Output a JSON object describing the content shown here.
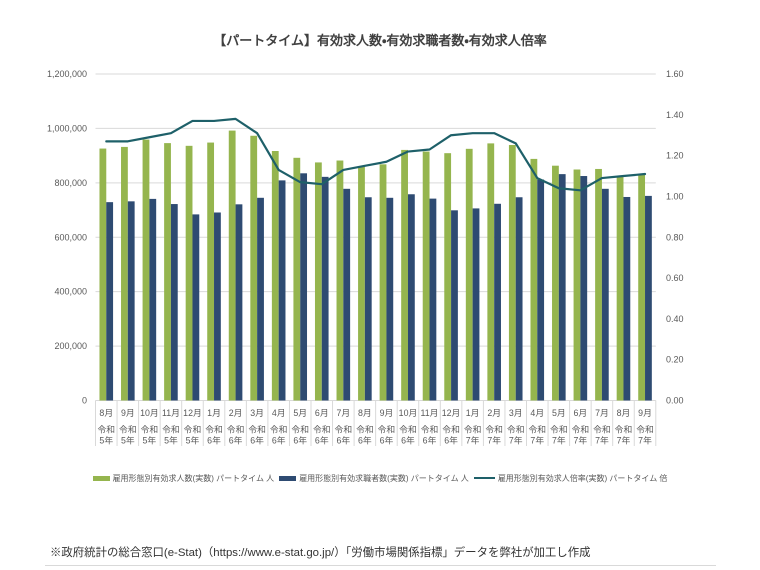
{
  "chart_data": {
    "type": "combo_bar_line",
    "title": "【パートタイム】有効求人数・有効求職者数・有効求人倍率",
    "categories": [
      {
        "month": "8月",
        "era": "令和",
        "year": "5年"
      },
      {
        "month": "9月",
        "era": "令和",
        "year": "5年"
      },
      {
        "month": "10月",
        "era": "令和",
        "year": "5年"
      },
      {
        "month": "11月",
        "era": "令和",
        "year": "5年"
      },
      {
        "month": "12月",
        "era": "令和",
        "year": "5年"
      },
      {
        "month": "1月",
        "era": "令和",
        "year": "6年"
      },
      {
        "month": "2月",
        "era": "令和",
        "year": "6年"
      },
      {
        "month": "3月",
        "era": "令和",
        "year": "6年"
      },
      {
        "month": "4月",
        "era": "令和",
        "year": "6年"
      },
      {
        "month": "5月",
        "era": "令和",
        "year": "6年"
      },
      {
        "month": "6月",
        "era": "令和",
        "year": "6年"
      },
      {
        "month": "7月",
        "era": "令和",
        "year": "6年"
      },
      {
        "month": "8月",
        "era": "令和",
        "year": "6年"
      },
      {
        "month": "9月",
        "era": "令和",
        "year": "6年"
      },
      {
        "month": "10月",
        "era": "令和",
        "year": "6年"
      },
      {
        "month": "11月",
        "era": "令和",
        "year": "6年"
      },
      {
        "month": "12月",
        "era": "令和",
        "year": "6年"
      },
      {
        "month": "1月",
        "era": "令和",
        "year": "7年"
      },
      {
        "month": "2月",
        "era": "令和",
        "year": "7年"
      },
      {
        "month": "3月",
        "era": "令和",
        "year": "7年"
      },
      {
        "month": "4月",
        "era": "令和",
        "year": "7年"
      },
      {
        "month": "5月",
        "era": "令和",
        "year": "7年"
      },
      {
        "month": "6月",
        "era": "令和",
        "year": "7年"
      },
      {
        "month": "7月",
        "era": "令和",
        "year": "7年"
      },
      {
        "month": "8月",
        "era": "令和",
        "year": "7年"
      },
      {
        "month": "9月",
        "era": "令和",
        "year": "7年"
      }
    ],
    "series": [
      {
        "name": "雇用形態別有効求人数(実数) パートタイム 人",
        "type": "bar",
        "axis": "left",
        "color": "#95B54E",
        "values": [
          926000,
          932000,
          959000,
          946000,
          936000,
          948000,
          992000,
          973000,
          917000,
          892000,
          875000,
          882000,
          861000,
          868000,
          921000,
          915000,
          909000,
          925000,
          945000,
          939000,
          888000,
          863000,
          849000,
          851000,
          824000,
          831000
        ]
      },
      {
        "name": "雇用形態別有効求職者数(実数) パートタイム 人",
        "type": "bar",
        "axis": "left",
        "color": "#2E4B72",
        "values": [
          729000,
          732000,
          741000,
          722000,
          684000,
          691000,
          721000,
          745000,
          809000,
          835000,
          822000,
          778000,
          747000,
          745000,
          758000,
          742000,
          699000,
          706000,
          723000,
          747000,
          812000,
          832000,
          825000,
          778000,
          748000,
          752000
        ]
      },
      {
        "name": "雇用形態別有効求人倍率(実数) パートタイム 倍",
        "type": "line",
        "axis": "right",
        "color": "#1E6069",
        "values": [
          1.27,
          1.27,
          1.29,
          1.31,
          1.37,
          1.37,
          1.38,
          1.31,
          1.13,
          1.07,
          1.06,
          1.13,
          1.15,
          1.17,
          1.22,
          1.23,
          1.3,
          1.31,
          1.31,
          1.26,
          1.09,
          1.04,
          1.03,
          1.09,
          1.1,
          1.11
        ]
      }
    ],
    "axes": {
      "left": {
        "min": 0,
        "max": 1200000,
        "step": 200000,
        "tick_labels": [
          "0",
          "200,000",
          "400,000",
          "600,000",
          "800,000",
          "1,000,000",
          "1,200,000"
        ]
      },
      "right": {
        "min": 0,
        "max": 1.6,
        "step": 0.2,
        "tick_labels": [
          "0.00",
          "0.20",
          "0.40",
          "0.60",
          "0.80",
          "1.00",
          "1.20",
          "1.40",
          "1.60"
        ]
      }
    },
    "grid": true,
    "legend_position": "bottom"
  },
  "colors": {
    "background": "#FFFFFF",
    "grid": "#D9D9D9",
    "axis_text": "#595959",
    "title_text": "#404040",
    "footer_text": "#333333",
    "divider": "#D9D9D9"
  },
  "footer": {
    "text": "※政府統計の総合窓口(e-Stat)（https://www.e-stat.go.jp/）「労働市場関係指標」データを弊社が加工し作成"
  }
}
